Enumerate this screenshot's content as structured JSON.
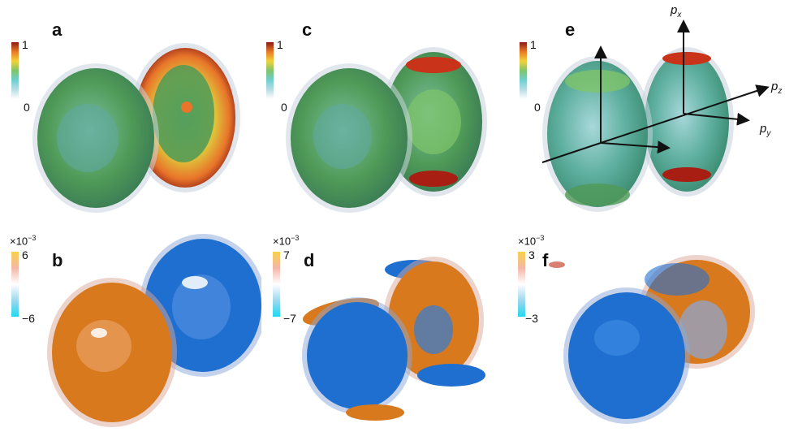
{
  "panels": [
    {
      "label": "a",
      "cb_max": "1",
      "cb_min": "0",
      "cb_exp": ""
    },
    {
      "label": "b",
      "cb_max": "6",
      "cb_min": "−6",
      "cb_exp": "×10"
    },
    {
      "label": "c",
      "cb_max": "1",
      "cb_min": "0",
      "cb_exp": ""
    },
    {
      "label": "d",
      "cb_max": "7",
      "cb_min": "−7",
      "cb_exp": "×10"
    },
    {
      "label": "e",
      "cb_max": "1",
      "cb_min": "0",
      "cb_exp": ""
    },
    {
      "label": "f",
      "cb_max": "3",
      "cb_min": "−3",
      "cb_exp": "×10"
    }
  ],
  "exponent": "−3",
  "axes": {
    "px": "p",
    "px_sub": "x",
    "py": "p",
    "py_sub": "y",
    "pz": "p",
    "pz_sub": "z"
  },
  "colors": {
    "density_scale": [
      "#ffffff",
      "#b8dde6",
      "#6fcfd0",
      "#7fc46a",
      "#f0d23a",
      "#e87a24",
      "#8b1a14"
    ],
    "diff_scale": [
      "#1fd8f0",
      "#9fd8ee",
      "#ffffff",
      "#f4b7a8",
      "#f8d24a"
    ],
    "green_shell": "#4f9a57",
    "blue_lobe": "#1f6fd0",
    "orange_lobe": "#d9791e"
  }
}
